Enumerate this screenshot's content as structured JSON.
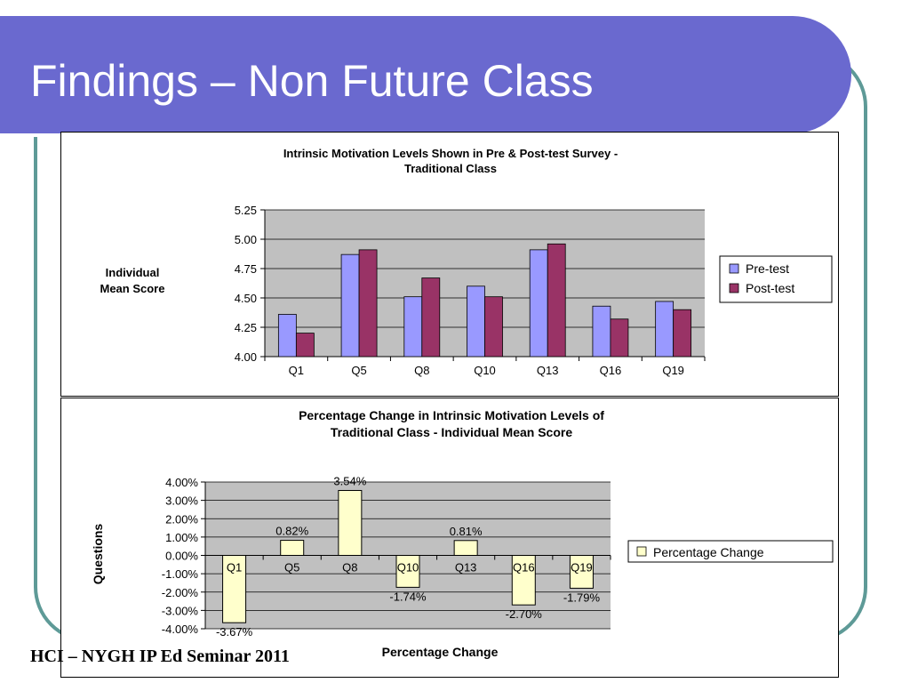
{
  "slide": {
    "title": "Findings – Non Future Class",
    "footer": "HCI – NYGH IP Ed Seminar 2011"
  },
  "colors": {
    "title_bar": "#6A69CF",
    "frame": "#5E9A97",
    "plot_bg": "#C0C0C0",
    "pre_test": "#9999FF",
    "post_test": "#993366",
    "percentage_change": "#FFFFCC"
  },
  "chart_data": [
    {
      "type": "bar",
      "title": "Intrinsic Motivation Levels Shown in Pre & Post-test Survey -",
      "subtitle": "Traditional Class",
      "xlabel": "",
      "ylabel": "Individual Mean Score",
      "categories": [
        "Q1",
        "Q5",
        "Q8",
        "Q10",
        "Q13",
        "Q16",
        "Q19"
      ],
      "series": [
        {
          "name": "Pre-test",
          "values": [
            4.36,
            4.87,
            4.51,
            4.6,
            4.91,
            4.43,
            4.47
          ]
        },
        {
          "name": "Post-test",
          "values": [
            4.2,
            4.91,
            4.67,
            4.51,
            4.96,
            4.32,
            4.4
          ]
        }
      ],
      "ylim": [
        4.0,
        5.25
      ],
      "yticks": [
        "4.00",
        "4.25",
        "4.50",
        "4.75",
        "5.00",
        "5.25"
      ],
      "grid": true,
      "legend": "right"
    },
    {
      "type": "bar",
      "title": "Percentage Change in Intrinsic Motivation Levels of",
      "subtitle": "Traditional Class - Individual Mean Score",
      "xlabel": "Percentage Change",
      "ylabel": "Questions",
      "categories": [
        "Q1",
        "Q5",
        "Q8",
        "Q10",
        "Q13",
        "Q16",
        "Q19"
      ],
      "series": [
        {
          "name": "Percentage Change",
          "values": [
            -3.67,
            0.82,
            3.54,
            -1.74,
            0.81,
            -2.7,
            -1.79
          ]
        }
      ],
      "data_labels": [
        "-3.67%",
        "0.82%",
        "3.54%",
        "-1.74%",
        "0.81%",
        "-2.70%",
        "-1.79%"
      ],
      "ylim": [
        -4.0,
        4.0
      ],
      "yticks": [
        "-4.00%",
        "-3.00%",
        "-2.00%",
        "-1.00%",
        "0.00%",
        "1.00%",
        "2.00%",
        "3.00%",
        "4.00%"
      ],
      "grid": true,
      "legend": "right"
    }
  ]
}
